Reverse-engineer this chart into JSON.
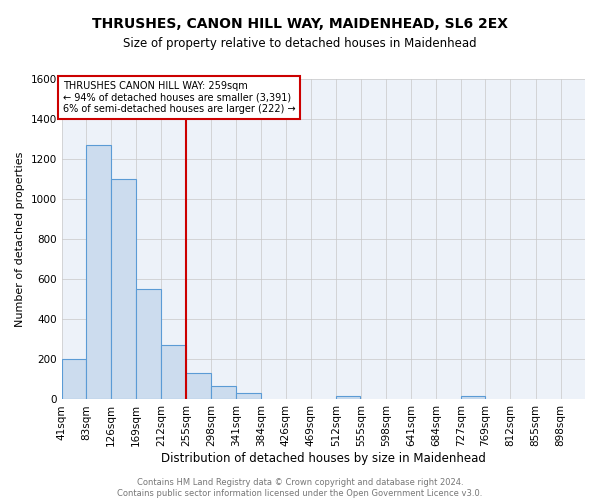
{
  "title": "THRUSHES, CANON HILL WAY, MAIDENHEAD, SL6 2EX",
  "subtitle": "Size of property relative to detached houses in Maidenhead",
  "xlabel": "Distribution of detached houses by size in Maidenhead",
  "ylabel": "Number of detached properties",
  "bin_labels": [
    "41sqm",
    "83sqm",
    "126sqm",
    "169sqm",
    "212sqm",
    "255sqm",
    "298sqm",
    "341sqm",
    "384sqm",
    "426sqm",
    "469sqm",
    "512sqm",
    "555sqm",
    "598sqm",
    "641sqm",
    "684sqm",
    "727sqm",
    "769sqm",
    "812sqm",
    "855sqm",
    "898sqm"
  ],
  "bin_left_edges": [
    41,
    83,
    126,
    169,
    212,
    255,
    298,
    341,
    384,
    426,
    469,
    512,
    555,
    598,
    641,
    684,
    727,
    769,
    812,
    855,
    898
  ],
  "bin_values": [
    200,
    1270,
    1100,
    550,
    270,
    130,
    65,
    30,
    0,
    0,
    0,
    15,
    0,
    0,
    0,
    0,
    18,
    0,
    0,
    0,
    0
  ],
  "bar_color": "#ccdcee",
  "bar_edge_color": "#5b9bd5",
  "property_line_x": 255,
  "property_line_color": "#cc0000",
  "annotation_line1": "THRUSHES CANON HILL WAY: 259sqm",
  "annotation_line2": "← 94% of detached houses are smaller (3,391)",
  "annotation_line3": "6% of semi-detached houses are larger (222) →",
  "annotation_box_edge": "#cc0000",
  "ylim": [
    0,
    1600
  ],
  "yticks": [
    0,
    200,
    400,
    600,
    800,
    1000,
    1200,
    1400,
    1600
  ],
  "grid_color": "#c8c8c8",
  "background_color": "#edf2f9",
  "footer_line1": "Contains HM Land Registry data © Crown copyright and database right 2024.",
  "footer_line2": "Contains public sector information licensed under the Open Government Licence v3.0.",
  "title_fontsize": 10,
  "subtitle_fontsize": 8.5,
  "ylabel_fontsize": 8,
  "xlabel_fontsize": 8.5,
  "footer_fontsize": 6,
  "tick_fontsize": 7.5
}
